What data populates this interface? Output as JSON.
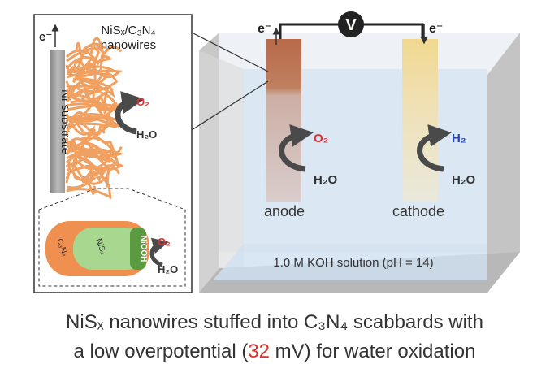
{
  "inset": {
    "electron": "e⁻",
    "wires_label": [
      "NiSₓ/C₃N₄",
      "nanowires"
    ],
    "substrate": "Ni substrate",
    "product": "O₂",
    "reactant": "H₂O"
  },
  "detail": {
    "shell": "C₃N₄",
    "core": "NiSₓ",
    "surface": "NiOOH",
    "product": "O₂",
    "reactant": "H₂O"
  },
  "cell": {
    "meter": "V",
    "electron_left": "e⁻",
    "electron_right": "e⁻",
    "anode": {
      "label": "anode",
      "product": "O₂",
      "reactant": "H₂O"
    },
    "cathode": {
      "label": "cathode",
      "product": "H₂",
      "reactant": "H₂O"
    },
    "electrolyte": "1.0 M KOH solution (pH = 14)"
  },
  "caption": {
    "line1": [
      "NiSₓ nanowires stuffed into C₃N₄ scabbards with"
    ],
    "line2": [
      "a low overpotential (",
      "32",
      " mV) for water oxidation"
    ]
  }
}
